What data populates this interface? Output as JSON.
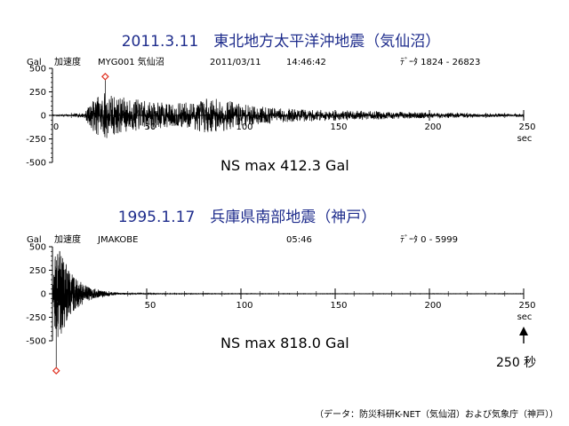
{
  "chart_data": [
    {
      "type": "line",
      "title": "2011.3.11　東北地方太平洋沖地震（気仙沼）",
      "ylabel": "Gal",
      "series_label": "加速度",
      "station": "MYG001  気仙沼",
      "date": "2011/03/11",
      "time": "14:46:42",
      "data_range": "ﾃﾞｰﾀ 1824 - 26823",
      "x_unit": "sec",
      "xlim": [
        0,
        250
      ],
      "ylim": [
        -500,
        500
      ],
      "xticks": [
        "0",
        "50",
        "100",
        "150",
        "200",
        "250"
      ],
      "yticks": [
        "500",
        "250",
        "0",
        "-250",
        "-500"
      ],
      "max_label": "NS  max  412.3 Gal",
      "peak": {
        "t": 28,
        "value": 412.3
      },
      "envelope": [
        [
          0,
          5
        ],
        [
          10,
          12
        ],
        [
          17,
          30
        ],
        [
          22,
          180
        ],
        [
          28,
          260
        ],
        [
          35,
          200
        ],
        [
          42,
          180
        ],
        [
          50,
          150
        ],
        [
          58,
          140
        ],
        [
          65,
          120
        ],
        [
          70,
          140
        ],
        [
          80,
          180
        ],
        [
          88,
          175
        ],
        [
          95,
          150
        ],
        [
          100,
          120
        ],
        [
          108,
          100
        ],
        [
          120,
          80
        ],
        [
          135,
          65
        ],
        [
          150,
          55
        ],
        [
          165,
          48
        ],
        [
          180,
          40
        ],
        [
          200,
          30
        ],
        [
          220,
          22
        ],
        [
          250,
          15
        ]
      ]
    },
    {
      "type": "line",
      "title": "1995.1.17　兵庫県南部地震（神戸）",
      "ylabel": "Gal",
      "series_label": "加速度",
      "station": "JMAKOBE",
      "time": "05:46",
      "data_range": "ﾃﾞｰﾀ 0 - 5999",
      "x_unit": "sec",
      "xlim": [
        0,
        250
      ],
      "ylim": [
        -500,
        500
      ],
      "xticks": [
        "0",
        "50",
        "100",
        "150",
        "200",
        "250"
      ],
      "yticks": [
        "500",
        "250",
        "0",
        "-250",
        "-500"
      ],
      "max_label": "NS  max  818.0 Gal",
      "peak": {
        "t": 2,
        "value": -818.0
      },
      "envelope": [
        [
          0,
          40
        ],
        [
          1.5,
          420
        ],
        [
          3,
          480
        ],
        [
          5,
          420
        ],
        [
          7,
          340
        ],
        [
          9,
          260
        ],
        [
          11,
          190
        ],
        [
          14,
          140
        ],
        [
          17,
          100
        ],
        [
          20,
          70
        ],
        [
          25,
          40
        ],
        [
          30,
          22
        ],
        [
          35,
          12
        ],
        [
          45,
          6
        ],
        [
          60,
          3
        ],
        [
          100,
          2
        ],
        [
          130,
          1.5
        ],
        [
          250,
          1.5
        ]
      ],
      "annotation": "250 秒"
    }
  ],
  "source_note": "（データ：防災科研K-NET（気仙沼）および気象庁（神戸））",
  "colors": {
    "title": "#1e2c8c",
    "trace": "#000000",
    "peak_marker": "#e03020"
  }
}
